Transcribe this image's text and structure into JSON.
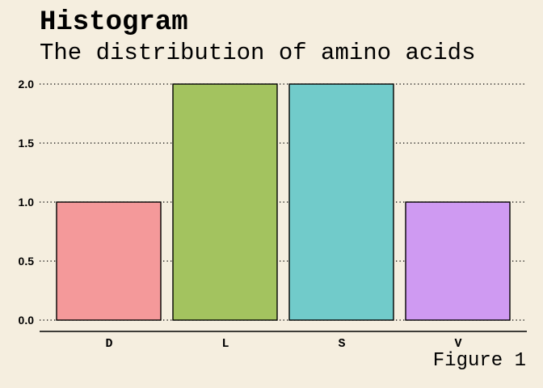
{
  "chart_data": {
    "type": "bar",
    "title": "Histogram",
    "subtitle": "The distribution of amino acids",
    "caption": "Figure 1",
    "xlabel": "",
    "ylabel": "",
    "categories": [
      "D",
      "L",
      "S",
      "V"
    ],
    "values": [
      1,
      2,
      2,
      1
    ],
    "colors": [
      "#F4999A",
      "#A3C35F",
      "#71CBCA",
      "#CF9AF2"
    ],
    "ylim": [
      0,
      2
    ],
    "yticks": [
      0,
      0.5,
      1,
      1.5,
      2
    ],
    "ytick_labels": [
      "0.0",
      "0.5",
      "1.0",
      "1.5",
      "2.0"
    ],
    "grid": "horizontal dotted",
    "legend": "none",
    "background": "#F5EEDF"
  }
}
